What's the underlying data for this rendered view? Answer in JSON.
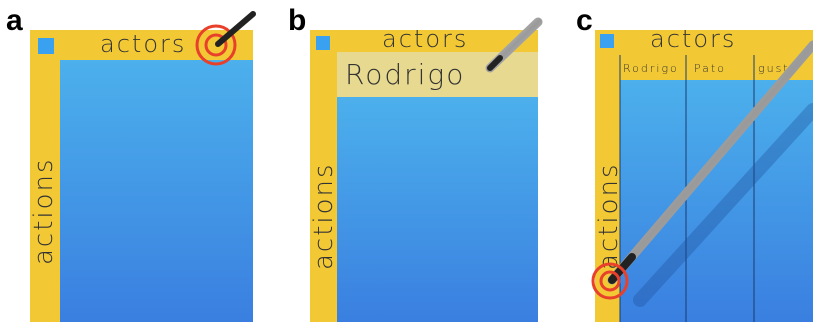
{
  "panels": [
    {
      "label": "a",
      "header": "actors",
      "side": "actions"
    },
    {
      "label": "b",
      "header": "actors",
      "side": "actions",
      "input": "Rodrigo"
    },
    {
      "label": "c",
      "header": "actors",
      "side": "actions",
      "columns": [
        "Rodrigo",
        "Pato",
        "gusto"
      ]
    }
  ]
}
